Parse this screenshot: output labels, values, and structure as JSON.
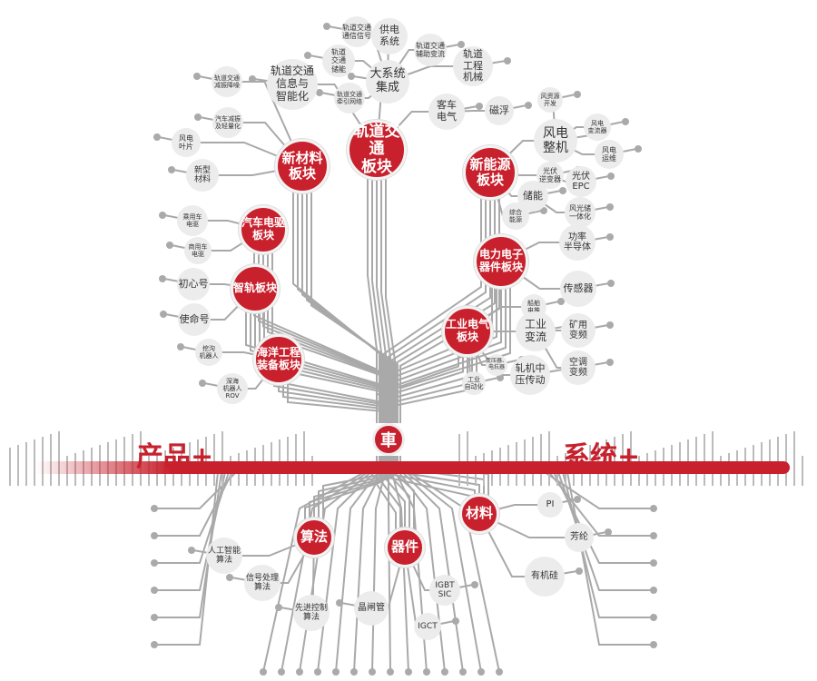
{
  "colors": {
    "accent": "#c8202c",
    "node_gray": "#ececec",
    "trace": "#a9a9a9"
  },
  "logo": {
    "icon": "crrc-che-logo-icon",
    "glyph": "車"
  },
  "band": {
    "left_label": "产品+",
    "right_label": "系统+"
  },
  "primary_nodes": [
    "轨道交通\n板块",
    "新材料\n板块",
    "新能源\n板块",
    "汽车电驱\n板块",
    "智轨板块",
    "电力电子\n器件板块",
    "工业电气\n板块",
    "海洋工程\n装备板块",
    "算法",
    "器件",
    "材料"
  ],
  "secondary_nodes": [
    "轨道交通\n通信信号",
    "供电\n系统",
    "轨道交通\n辅助变流",
    "轨道\n交通\n储能",
    "大系统\n集成",
    "轨道\n工程\n机械",
    "轨道交通\n信息与\n智能化",
    "轨道交通\n减振降噪",
    "轨道交通\n牵引网络",
    "客车\n电气",
    "磁浮",
    "汽车减振\n及轻量化",
    "风电\n叶片",
    "新型\n材料",
    "风资源\n开发",
    "风电\n整机",
    "风电\n变流器",
    "风电\n运维",
    "光伏\n逆变器",
    "光伏\nEPC",
    "储能",
    "综合\n能源",
    "风光储\n一体化",
    "乘用车\n电驱",
    "商用车\n电驱",
    "功率\n半导体",
    "传感器",
    "初心号",
    "使命号",
    "船舶\n电推",
    "工业\n变流",
    "矿用\n变频",
    "挖沟\n机器人",
    "变压器、\n电抗器",
    "轧机中\n压传动",
    "空调\n变频",
    "工业\n自动化",
    "深海\n机器人\nROV",
    "PI",
    "芳纶",
    "人工智能\n算法",
    "有机硅",
    "信号处理\n算法",
    "IGBT\nSIC",
    "先进控制\n算法",
    "晶闸管",
    "IGCT"
  ]
}
